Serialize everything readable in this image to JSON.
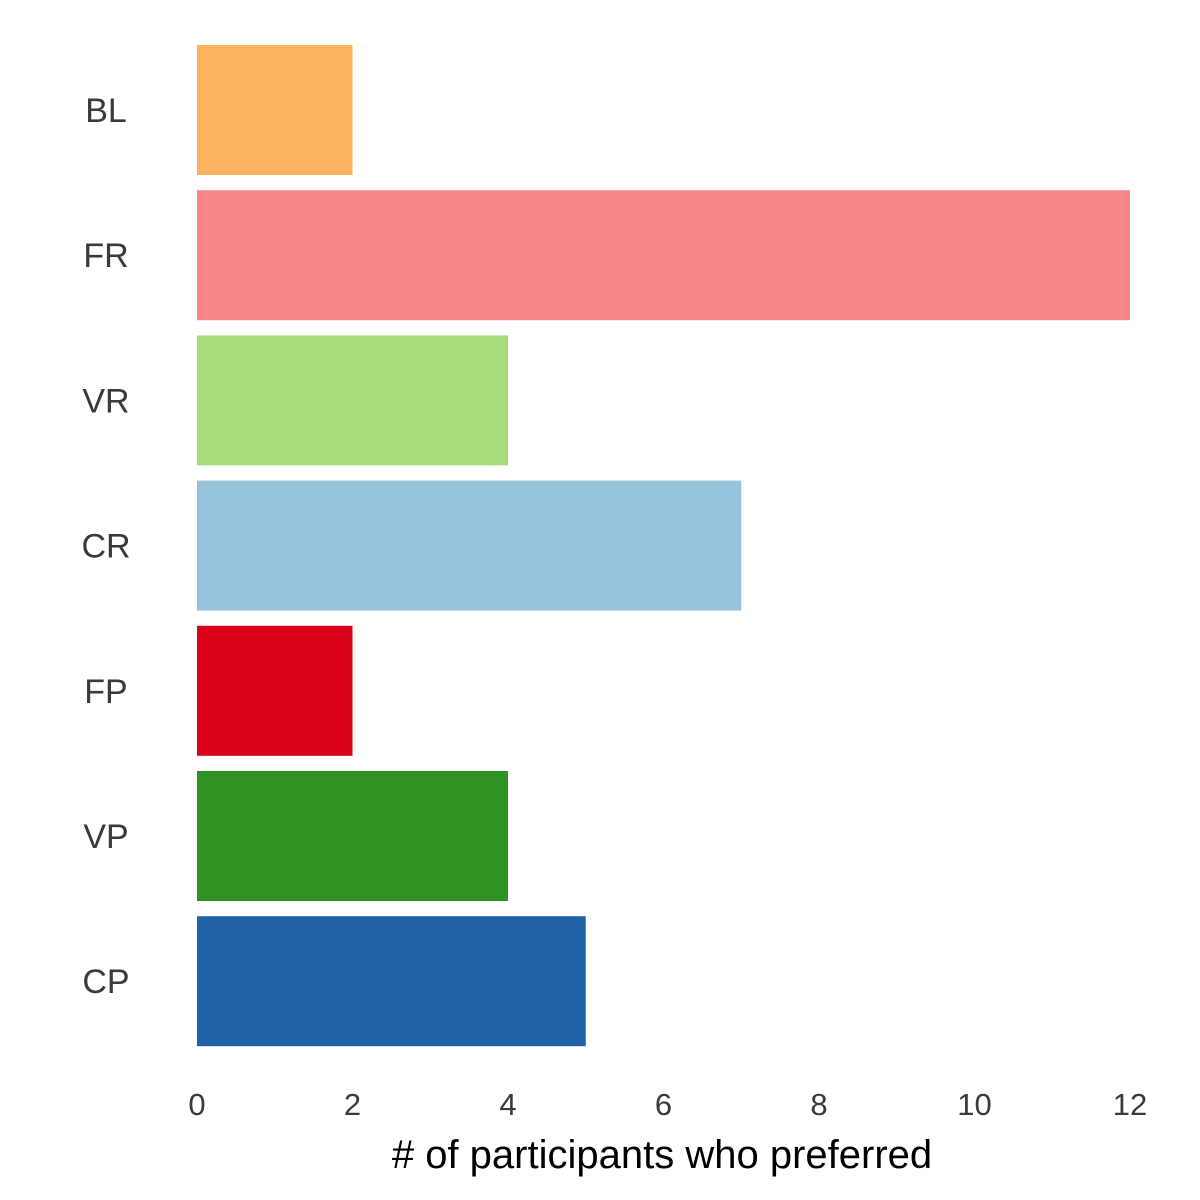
{
  "chart_data": {
    "type": "bar",
    "orientation": "horizontal",
    "categories": [
      "BL",
      "FR",
      "VR",
      "CR",
      "FP",
      "VP",
      "CP"
    ],
    "values": [
      2,
      12,
      4,
      7,
      2,
      4,
      5
    ],
    "colors": [
      "#fbb35f",
      "#f78589",
      "#a6dc7a",
      "#97c3dc",
      "#d9001a",
      "#2f9322",
      "#1f63a6"
    ],
    "xlabel": "# of participants who preferred",
    "ylabel": "",
    "title": "",
    "xlim": [
      0,
      12
    ],
    "xticks": [
      0,
      2,
      4,
      6,
      8,
      10,
      12
    ],
    "grid": false,
    "legend": "none"
  }
}
